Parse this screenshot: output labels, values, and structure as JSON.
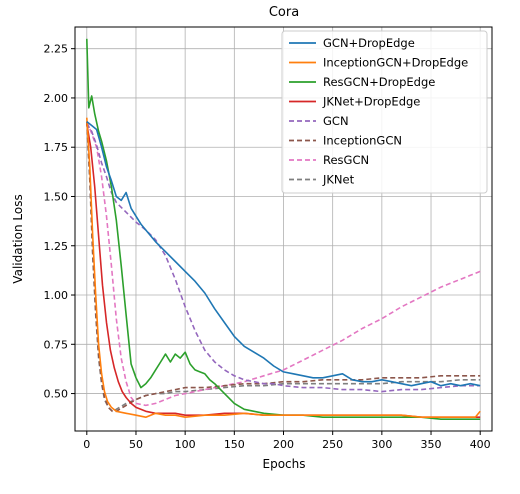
{
  "chart_data": {
    "type": "line",
    "title": "Cora",
    "xlabel": "Epochs",
    "ylabel": "Validation Loss",
    "xlim": [
      -12,
      412
    ],
    "ylim": [
      0.31,
      2.36
    ],
    "xticks": [
      0,
      50,
      100,
      150,
      200,
      250,
      300,
      350,
      400
    ],
    "yticks": [
      0.5,
      0.75,
      1.0,
      1.25,
      1.5,
      1.75,
      2.0,
      2.25
    ],
    "ytick_labels": [
      "0.50",
      "0.75",
      "1.00",
      "1.25",
      "1.50",
      "1.75",
      "2.00",
      "2.25"
    ],
    "grid": true,
    "legend_position": "top-right",
    "series": [
      {
        "name": "GCN+DropEdge",
        "color": "#1f77b4",
        "style": "solid",
        "points": [
          [
            0,
            1.88
          ],
          [
            5,
            1.86
          ],
          [
            10,
            1.84
          ],
          [
            15,
            1.75
          ],
          [
            20,
            1.65
          ],
          [
            25,
            1.58
          ],
          [
            30,
            1.5
          ],
          [
            35,
            1.48
          ],
          [
            40,
            1.52
          ],
          [
            45,
            1.44
          ],
          [
            50,
            1.4
          ],
          [
            55,
            1.36
          ],
          [
            60,
            1.33
          ],
          [
            65,
            1.3
          ],
          [
            70,
            1.27
          ],
          [
            80,
            1.22
          ],
          [
            90,
            1.17
          ],
          [
            100,
            1.12
          ],
          [
            110,
            1.07
          ],
          [
            120,
            1.01
          ],
          [
            130,
            0.93
          ],
          [
            140,
            0.86
          ],
          [
            150,
            0.79
          ],
          [
            160,
            0.74
          ],
          [
            170,
            0.71
          ],
          [
            180,
            0.68
          ],
          [
            190,
            0.64
          ],
          [
            200,
            0.61
          ],
          [
            210,
            0.6
          ],
          [
            220,
            0.59
          ],
          [
            230,
            0.58
          ],
          [
            240,
            0.58
          ],
          [
            250,
            0.59
          ],
          [
            260,
            0.6
          ],
          [
            270,
            0.57
          ],
          [
            280,
            0.56
          ],
          [
            290,
            0.56
          ],
          [
            300,
            0.57
          ],
          [
            310,
            0.56
          ],
          [
            320,
            0.55
          ],
          [
            330,
            0.54
          ],
          [
            340,
            0.55
          ],
          [
            350,
            0.56
          ],
          [
            360,
            0.54
          ],
          [
            370,
            0.55
          ],
          [
            380,
            0.54
          ],
          [
            390,
            0.55
          ],
          [
            400,
            0.54
          ]
        ]
      },
      {
        "name": "InceptionGCN+DropEdge",
        "color": "#ff7f0e",
        "style": "solid",
        "points": [
          [
            0,
            1.9
          ],
          [
            3,
            1.65
          ],
          [
            6,
            1.3
          ],
          [
            9,
            1.0
          ],
          [
            12,
            0.75
          ],
          [
            15,
            0.6
          ],
          [
            18,
            0.51
          ],
          [
            21,
            0.46
          ],
          [
            25,
            0.43
          ],
          [
            30,
            0.41
          ],
          [
            40,
            0.4
          ],
          [
            50,
            0.39
          ],
          [
            60,
            0.38
          ],
          [
            70,
            0.4
          ],
          [
            80,
            0.39
          ],
          [
            90,
            0.39
          ],
          [
            100,
            0.38
          ],
          [
            120,
            0.39
          ],
          [
            140,
            0.39
          ],
          [
            160,
            0.4
          ],
          [
            180,
            0.39
          ],
          [
            200,
            0.39
          ],
          [
            220,
            0.39
          ],
          [
            240,
            0.39
          ],
          [
            260,
            0.39
          ],
          [
            280,
            0.39
          ],
          [
            300,
            0.39
          ],
          [
            320,
            0.39
          ],
          [
            340,
            0.38
          ],
          [
            360,
            0.38
          ],
          [
            380,
            0.38
          ],
          [
            395,
            0.38
          ],
          [
            400,
            0.41
          ]
        ]
      },
      {
        "name": "ResGCN+DropEdge",
        "color": "#2ca02c",
        "style": "solid",
        "points": [
          [
            0,
            2.3
          ],
          [
            2,
            1.95
          ],
          [
            5,
            2.01
          ],
          [
            8,
            1.92
          ],
          [
            12,
            1.83
          ],
          [
            15,
            1.78
          ],
          [
            20,
            1.68
          ],
          [
            25,
            1.55
          ],
          [
            30,
            1.38
          ],
          [
            35,
            1.15
          ],
          [
            40,
            0.9
          ],
          [
            45,
            0.65
          ],
          [
            50,
            0.58
          ],
          [
            55,
            0.53
          ],
          [
            60,
            0.55
          ],
          [
            65,
            0.58
          ],
          [
            70,
            0.62
          ],
          [
            75,
            0.66
          ],
          [
            80,
            0.7
          ],
          [
            85,
            0.66
          ],
          [
            90,
            0.7
          ],
          [
            95,
            0.68
          ],
          [
            100,
            0.71
          ],
          [
            105,
            0.65
          ],
          [
            110,
            0.62
          ],
          [
            115,
            0.61
          ],
          [
            120,
            0.6
          ],
          [
            125,
            0.57
          ],
          [
            130,
            0.55
          ],
          [
            140,
            0.5
          ],
          [
            150,
            0.45
          ],
          [
            160,
            0.42
          ],
          [
            170,
            0.41
          ],
          [
            180,
            0.4
          ],
          [
            200,
            0.39
          ],
          [
            220,
            0.39
          ],
          [
            240,
            0.38
          ],
          [
            260,
            0.38
          ],
          [
            280,
            0.38
          ],
          [
            300,
            0.38
          ],
          [
            320,
            0.38
          ],
          [
            340,
            0.38
          ],
          [
            360,
            0.37
          ],
          [
            380,
            0.37
          ],
          [
            400,
            0.37
          ]
        ]
      },
      {
        "name": "JKNet+DropEdge",
        "color": "#d62728",
        "style": "solid",
        "points": [
          [
            0,
            1.87
          ],
          [
            4,
            1.75
          ],
          [
            8,
            1.55
          ],
          [
            12,
            1.3
          ],
          [
            16,
            1.05
          ],
          [
            20,
            0.86
          ],
          [
            24,
            0.72
          ],
          [
            28,
            0.63
          ],
          [
            32,
            0.56
          ],
          [
            36,
            0.51
          ],
          [
            40,
            0.48
          ],
          [
            45,
            0.45
          ],
          [
            50,
            0.43
          ],
          [
            60,
            0.41
          ],
          [
            70,
            0.4
          ],
          [
            80,
            0.4
          ],
          [
            90,
            0.4
          ],
          [
            100,
            0.39
          ],
          [
            120,
            0.39
          ],
          [
            140,
            0.4
          ],
          [
            160,
            0.4
          ],
          [
            180,
            0.39
          ],
          [
            200,
            0.39
          ],
          [
            220,
            0.39
          ],
          [
            240,
            0.39
          ],
          [
            260,
            0.39
          ],
          [
            280,
            0.39
          ],
          [
            300,
            0.39
          ],
          [
            320,
            0.39
          ],
          [
            340,
            0.38
          ],
          [
            360,
            0.38
          ],
          [
            380,
            0.38
          ],
          [
            400,
            0.38
          ]
        ]
      },
      {
        "name": "GCN",
        "color": "#9467bd",
        "style": "dashed",
        "points": [
          [
            0,
            1.87
          ],
          [
            5,
            1.83
          ],
          [
            10,
            1.76
          ],
          [
            15,
            1.67
          ],
          [
            20,
            1.6
          ],
          [
            25,
            1.52
          ],
          [
            30,
            1.47
          ],
          [
            40,
            1.42
          ],
          [
            50,
            1.37
          ],
          [
            60,
            1.33
          ],
          [
            70,
            1.28
          ],
          [
            80,
            1.2
          ],
          [
            90,
            1.08
          ],
          [
            100,
            0.94
          ],
          [
            110,
            0.82
          ],
          [
            120,
            0.72
          ],
          [
            130,
            0.66
          ],
          [
            140,
            0.62
          ],
          [
            150,
            0.59
          ],
          [
            160,
            0.57
          ],
          [
            170,
            0.56
          ],
          [
            180,
            0.55
          ],
          [
            190,
            0.55
          ],
          [
            200,
            0.54
          ],
          [
            220,
            0.53
          ],
          [
            240,
            0.53
          ],
          [
            260,
            0.52
          ],
          [
            280,
            0.52
          ],
          [
            300,
            0.51
          ],
          [
            320,
            0.52
          ],
          [
            340,
            0.52
          ],
          [
            360,
            0.53
          ],
          [
            380,
            0.54
          ],
          [
            400,
            0.54
          ]
        ]
      },
      {
        "name": "InceptionGCN",
        "color": "#8c564b",
        "style": "dashed",
        "points": [
          [
            0,
            1.88
          ],
          [
            3,
            1.6
          ],
          [
            6,
            1.22
          ],
          [
            9,
            0.92
          ],
          [
            12,
            0.7
          ],
          [
            15,
            0.56
          ],
          [
            18,
            0.48
          ],
          [
            22,
            0.43
          ],
          [
            26,
            0.41
          ],
          [
            30,
            0.41
          ],
          [
            40,
            0.44
          ],
          [
            50,
            0.47
          ],
          [
            60,
            0.49
          ],
          [
            70,
            0.5
          ],
          [
            80,
            0.51
          ],
          [
            90,
            0.52
          ],
          [
            100,
            0.53
          ],
          [
            120,
            0.53
          ],
          [
            140,
            0.54
          ],
          [
            160,
            0.55
          ],
          [
            180,
            0.55
          ],
          [
            200,
            0.56
          ],
          [
            220,
            0.56
          ],
          [
            240,
            0.57
          ],
          [
            260,
            0.57
          ],
          [
            280,
            0.57
          ],
          [
            300,
            0.58
          ],
          [
            320,
            0.58
          ],
          [
            340,
            0.58
          ],
          [
            360,
            0.59
          ],
          [
            380,
            0.59
          ],
          [
            400,
            0.59
          ]
        ]
      },
      {
        "name": "ResGCN",
        "color": "#e377c2",
        "style": "dashed",
        "points": [
          [
            0,
            1.88
          ],
          [
            5,
            1.82
          ],
          [
            10,
            1.75
          ],
          [
            15,
            1.6
          ],
          [
            20,
            1.4
          ],
          [
            25,
            1.15
          ],
          [
            30,
            0.88
          ],
          [
            35,
            0.68
          ],
          [
            40,
            0.56
          ],
          [
            45,
            0.48
          ],
          [
            50,
            0.45
          ],
          [
            60,
            0.44
          ],
          [
            70,
            0.45
          ],
          [
            80,
            0.47
          ],
          [
            90,
            0.49
          ],
          [
            100,
            0.5
          ],
          [
            120,
            0.52
          ],
          [
            140,
            0.54
          ],
          [
            160,
            0.56
          ],
          [
            180,
            0.59
          ],
          [
            200,
            0.62
          ],
          [
            220,
            0.67
          ],
          [
            240,
            0.72
          ],
          [
            260,
            0.77
          ],
          [
            280,
            0.83
          ],
          [
            300,
            0.88
          ],
          [
            320,
            0.94
          ],
          [
            340,
            0.99
          ],
          [
            360,
            1.04
          ],
          [
            380,
            1.08
          ],
          [
            390,
            1.1
          ],
          [
            400,
            1.12
          ]
        ]
      },
      {
        "name": "JKNet",
        "color": "#7f7f7f",
        "style": "dashed",
        "points": [
          [
            0,
            1.88
          ],
          [
            3,
            1.58
          ],
          [
            6,
            1.2
          ],
          [
            9,
            0.9
          ],
          [
            12,
            0.68
          ],
          [
            15,
            0.55
          ],
          [
            18,
            0.47
          ],
          [
            22,
            0.43
          ],
          [
            26,
            0.41
          ],
          [
            30,
            0.42
          ],
          [
            40,
            0.45
          ],
          [
            50,
            0.47
          ],
          [
            60,
            0.49
          ],
          [
            70,
            0.5
          ],
          [
            80,
            0.5
          ],
          [
            90,
            0.51
          ],
          [
            100,
            0.51
          ],
          [
            120,
            0.52
          ],
          [
            140,
            0.53
          ],
          [
            160,
            0.54
          ],
          [
            180,
            0.54
          ],
          [
            200,
            0.55
          ],
          [
            220,
            0.55
          ],
          [
            240,
            0.55
          ],
          [
            260,
            0.55
          ],
          [
            280,
            0.55
          ],
          [
            300,
            0.55
          ],
          [
            320,
            0.56
          ],
          [
            340,
            0.56
          ],
          [
            360,
            0.56
          ],
          [
            380,
            0.57
          ],
          [
            400,
            0.57
          ]
        ]
      }
    ]
  }
}
